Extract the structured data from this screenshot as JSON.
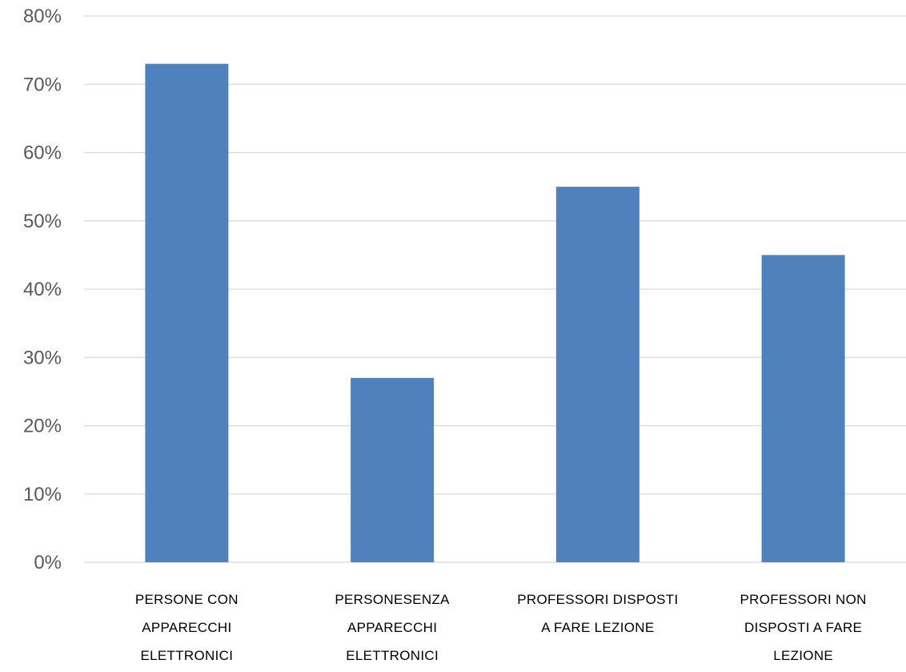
{
  "chart_data": {
    "type": "bar",
    "categories": [
      [
        "PERSONE CON",
        "APPARECCHI",
        "ELETTRONICI"
      ],
      [
        "PERSONESENZA",
        "APPARECCHI",
        "ELETTRONICI"
      ],
      [
        "PROFESSORI DISPOSTI",
        "A FARE LEZIONE"
      ],
      [
        "PROFESSORI NON",
        "DISPOSTI A FARE",
        "LEZIONE"
      ]
    ],
    "values": [
      73,
      27,
      55,
      45
    ],
    "value_unit": "%",
    "ylim": [
      0,
      80
    ],
    "yticks": [
      "0%",
      "10%",
      "20%",
      "30%",
      "40%",
      "50%",
      "60%",
      "70%",
      "80%"
    ],
    "title": "",
    "xlabel": "",
    "ylabel": "",
    "grid": true,
    "legend": "none",
    "bar_color": "#4f81bd",
    "grid_color": "#d9d9d9"
  }
}
